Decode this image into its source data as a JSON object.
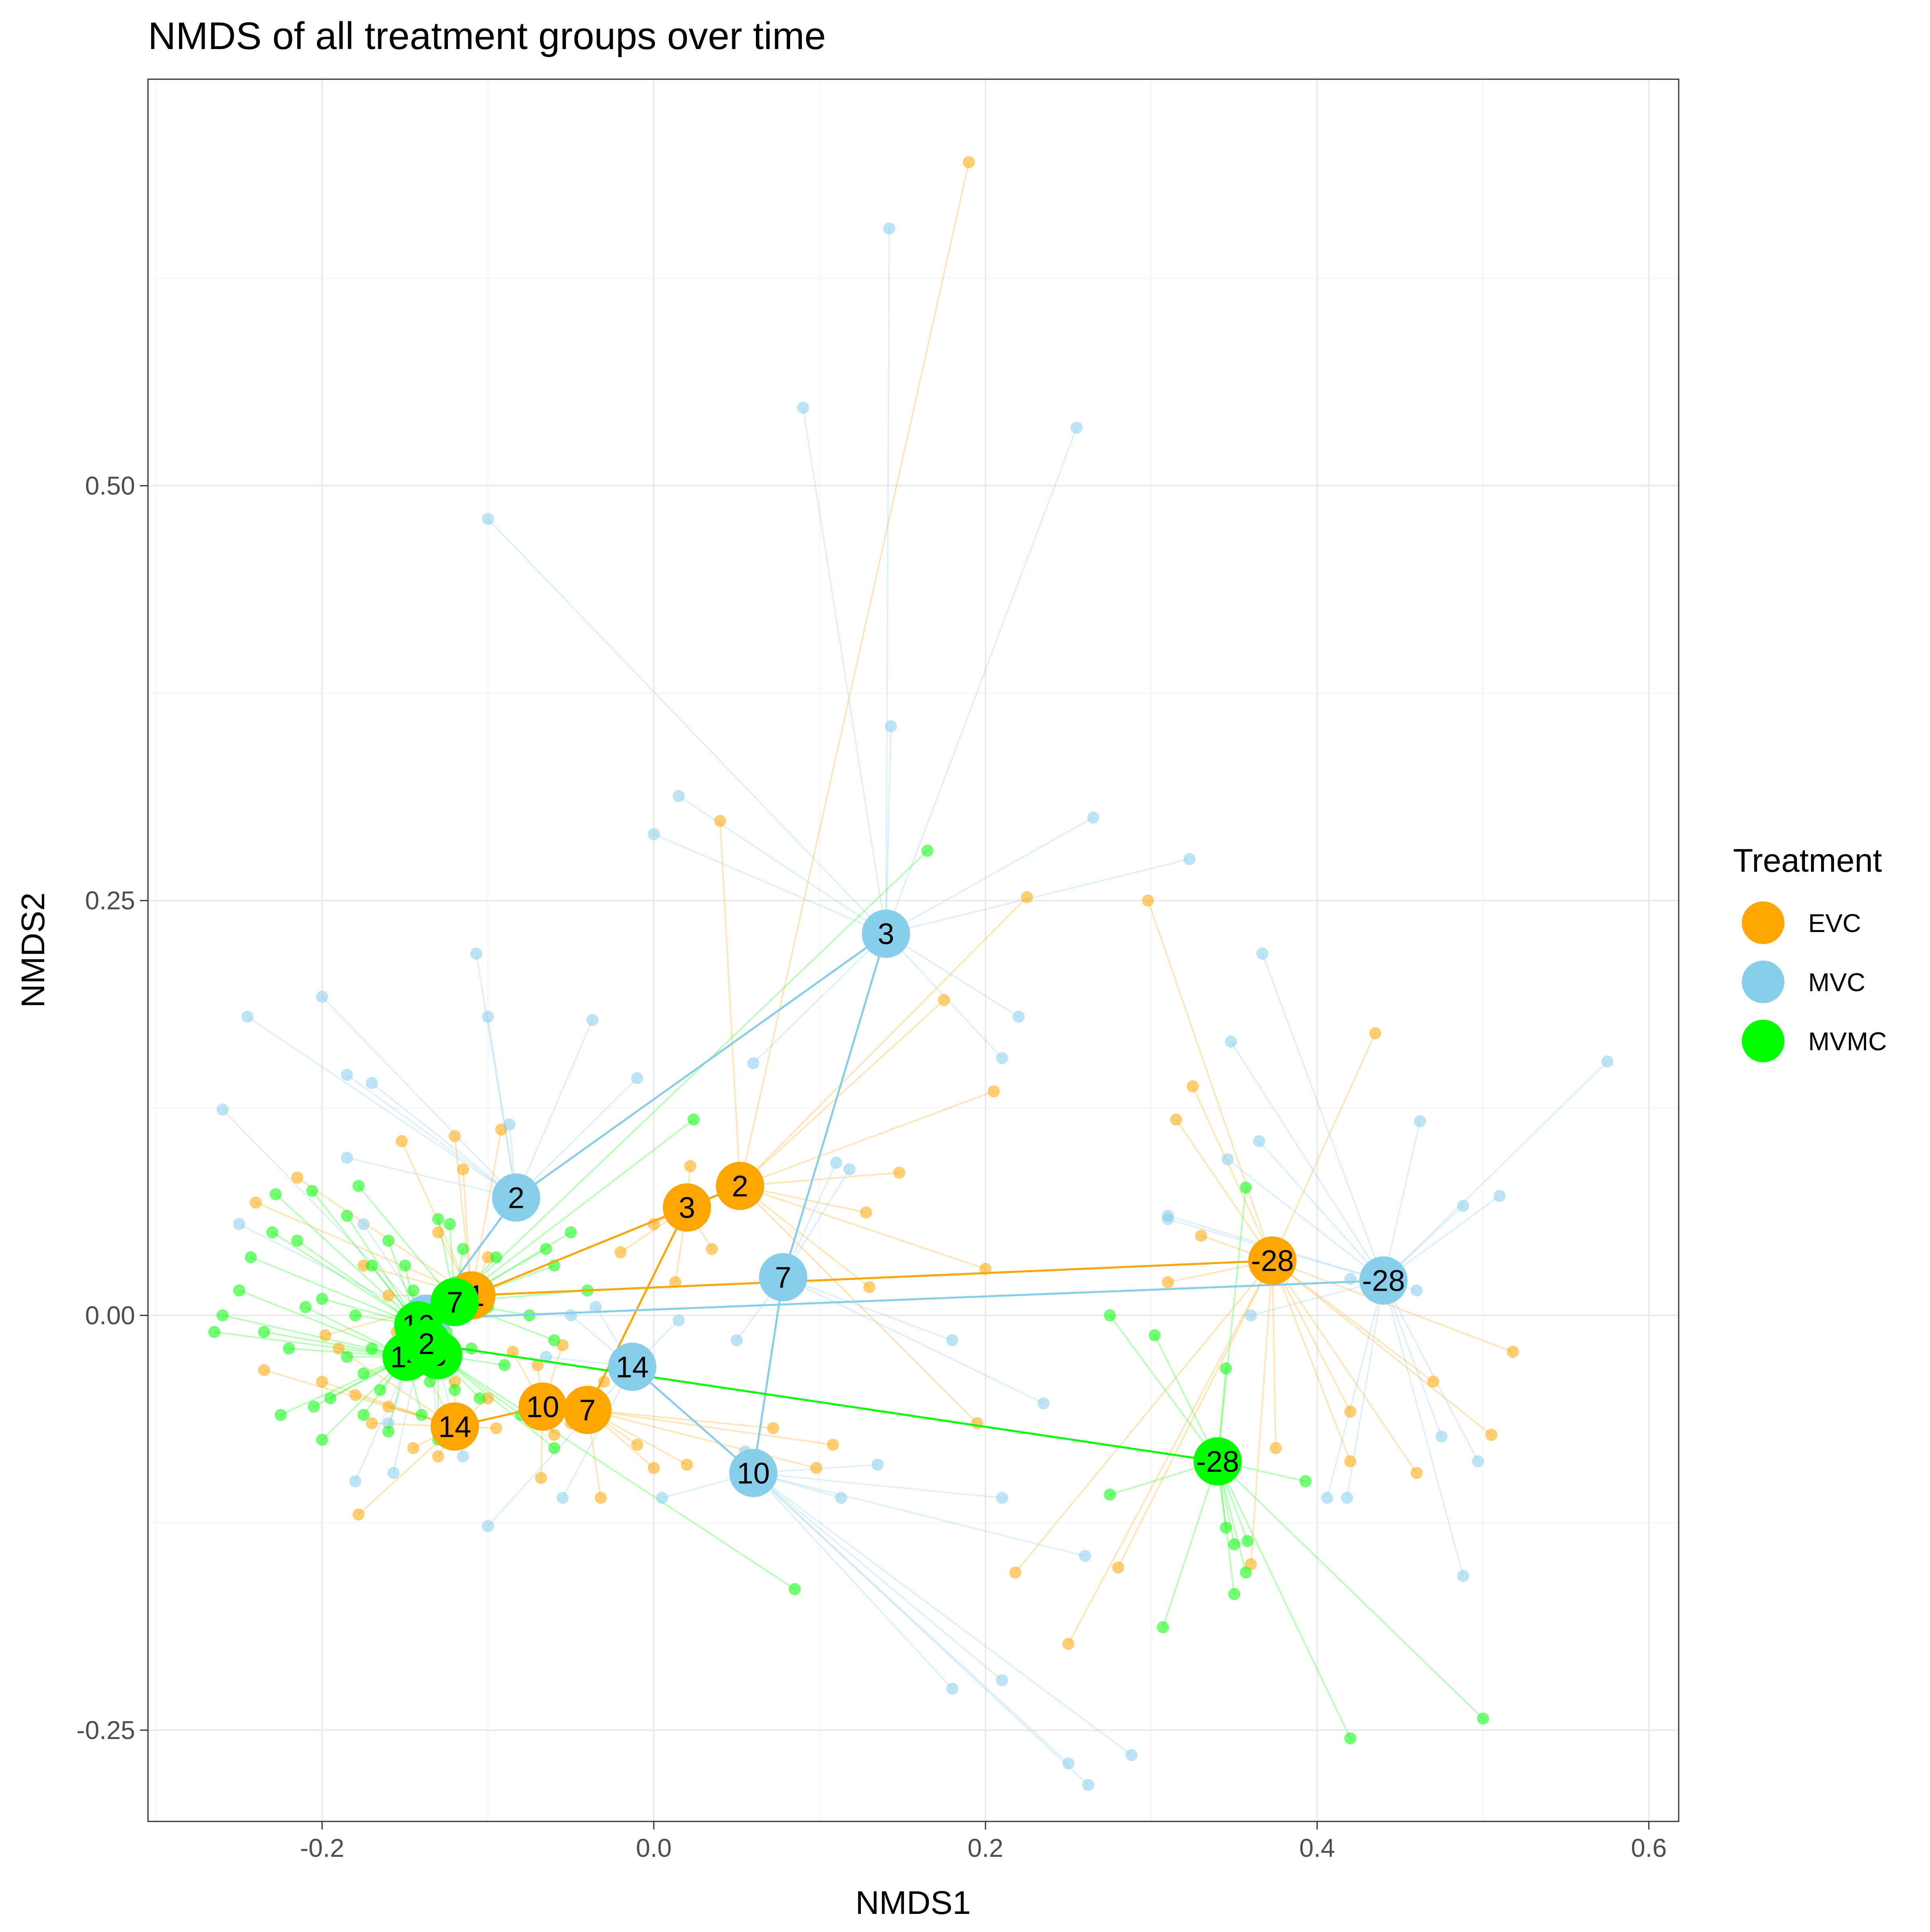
{
  "chart_data": {
    "type": "scatter",
    "title": "NMDS of all treatment groups over time",
    "xlabel": "NMDS1",
    "ylabel": "NMDS2",
    "xlim": [
      -0.305,
      0.618
    ],
    "ylim": [
      -0.305,
      0.745
    ],
    "x_ticks": [
      -0.2,
      0.0,
      0.2,
      0.4,
      0.6
    ],
    "x_tick_labels": [
      "-0.2",
      "0.0",
      "0.2",
      "0.4",
      "0.6"
    ],
    "y_ticks": [
      -0.25,
      0.0,
      0.25,
      0.5
    ],
    "y_tick_labels": [
      "-0.25",
      "0.00",
      "0.25",
      "0.50"
    ],
    "grid": true,
    "legend": {
      "title": "Treatment",
      "position": "right"
    },
    "series": [
      {
        "name": "EVC",
        "color": "#FFA500",
        "centroids": [
          {
            "label": "-28",
            "x": 0.373,
            "y": 0.033
          },
          {
            "label": "-1",
            "x": -0.11,
            "y": 0.012
          },
          {
            "label": "2",
            "x": 0.052,
            "y": 0.078
          },
          {
            "label": "3",
            "x": 0.02,
            "y": 0.065
          },
          {
            "label": "7",
            "x": -0.04,
            "y": -0.057
          },
          {
            "label": "10",
            "x": -0.067,
            "y": -0.055
          },
          {
            "label": "14",
            "x": -0.12,
            "y": -0.067
          }
        ],
        "samples": [
          [
            0.19,
            0.695,
            0
          ],
          [
            0.298,
            0.25,
            0
          ],
          [
            0.225,
            0.252,
            0
          ],
          [
            0.04,
            0.298,
            0
          ],
          [
            0.175,
            0.19,
            0
          ],
          [
            0.205,
            0.135,
            0
          ],
          [
            0.148,
            0.086,
            0
          ],
          [
            0.128,
            0.062,
            0
          ],
          [
            0.035,
            0.04,
            0
          ],
          [
            0.2,
            0.028,
            0
          ],
          [
            0.13,
            0.017,
            0
          ],
          [
            0.022,
            0.09,
            0
          ],
          [
            0.0,
            0.055,
            0
          ],
          [
            -0.02,
            0.038,
            0
          ],
          [
            0.013,
            0.02,
            0
          ],
          [
            0.435,
            0.17,
            0
          ],
          [
            0.325,
            0.138,
            0
          ],
          [
            0.315,
            0.118,
            0
          ],
          [
            0.33,
            0.048,
            0
          ],
          [
            0.31,
            0.02,
            0
          ],
          [
            0.375,
            -0.08,
            0
          ],
          [
            0.42,
            -0.088,
            0
          ],
          [
            0.46,
            -0.095,
            0
          ],
          [
            0.505,
            -0.072,
            0
          ],
          [
            0.518,
            -0.022,
            0
          ],
          [
            0.47,
            -0.04,
            0
          ],
          [
            0.42,
            -0.058,
            0
          ],
          [
            0.36,
            -0.15,
            0
          ],
          [
            -0.152,
            0.105,
            0
          ],
          [
            -0.12,
            0.108,
            0
          ],
          [
            -0.092,
            0.112,
            0
          ],
          [
            -0.115,
            0.088,
            0
          ],
          [
            -0.215,
            0.083,
            0
          ],
          [
            -0.24,
            0.068,
            0
          ],
          [
            -0.175,
            0.03,
            0
          ],
          [
            -0.16,
            0.012,
            0
          ],
          [
            -0.198,
            -0.012,
            0
          ],
          [
            -0.235,
            -0.033,
            0
          ],
          [
            -0.2,
            -0.04,
            0
          ],
          [
            -0.18,
            -0.048,
            0
          ],
          [
            -0.178,
            -0.12,
            0
          ],
          [
            -0.13,
            -0.085,
            0
          ],
          [
            -0.095,
            -0.068,
            0
          ],
          [
            -0.072,
            -0.062,
            0
          ],
          [
            -0.06,
            -0.072,
            0
          ],
          [
            -0.068,
            -0.098,
            0
          ],
          [
            -0.032,
            -0.11,
            0
          ],
          [
            -0.01,
            -0.078,
            0
          ],
          [
            0.0,
            -0.092,
            0
          ],
          [
            0.02,
            -0.09,
            0
          ],
          [
            0.072,
            -0.068,
            0
          ],
          [
            0.108,
            -0.078,
            0
          ],
          [
            0.098,
            -0.092,
            0
          ],
          [
            0.195,
            -0.065,
            0
          ],
          [
            0.218,
            -0.155,
            0
          ],
          [
            0.28,
            -0.152,
            0
          ],
          [
            0.25,
            -0.198,
            0
          ],
          [
            -0.145,
            -0.08,
            0
          ],
          [
            -0.13,
            0.05,
            0
          ],
          [
            -0.1,
            0.035,
            0
          ],
          [
            -0.085,
            -0.022,
            0
          ],
          [
            -0.055,
            -0.018,
            0
          ],
          [
            -0.14,
            -0.03,
            0
          ],
          [
            -0.16,
            -0.055,
            0
          ],
          [
            -0.12,
            -0.04,
            0
          ],
          [
            -0.1,
            -0.05,
            0
          ],
          [
            -0.07,
            -0.03,
            0
          ],
          [
            -0.03,
            -0.04,
            0
          ],
          [
            -0.05,
            -0.065,
            0
          ],
          [
            -0.17,
            -0.065,
            0
          ],
          [
            -0.19,
            -0.02,
            0
          ],
          [
            -0.155,
            -0.01,
            0
          ]
        ]
      },
      {
        "name": "MVC",
        "color": "#87CEEB",
        "centroids": [
          {
            "label": "-28",
            "x": 0.44,
            "y": 0.021
          },
          {
            "label": "2",
            "x": -0.083,
            "y": 0.071
          },
          {
            "label": "3",
            "x": 0.14,
            "y": 0.23
          },
          {
            "label": "7",
            "x": 0.078,
            "y": 0.023
          },
          {
            "label": "10",
            "x": 0.06,
            "y": -0.095
          },
          {
            "label": "14",
            "x": -0.013,
            "y": -0.031
          },
          {
            "label": "-1",
            "x": -0.137,
            "y": -0.002
          }
        ],
        "samples": [
          [
            0.142,
            0.655,
            1
          ],
          [
            0.09,
            0.547,
            1
          ],
          [
            0.255,
            0.535,
            1
          ],
          [
            -0.1,
            0.48,
            1
          ],
          [
            0.143,
            0.355,
            1
          ],
          [
            0.015,
            0.313,
            1
          ],
          [
            0.0,
            0.29,
            1
          ],
          [
            0.265,
            0.3,
            1
          ],
          [
            0.323,
            0.275,
            1
          ],
          [
            0.367,
            0.218,
            1
          ],
          [
            0.348,
            0.165,
            1
          ],
          [
            0.365,
            0.105,
            1
          ],
          [
            0.346,
            0.094,
            1
          ],
          [
            0.31,
            0.058,
            1
          ],
          [
            0.575,
            0.153,
            1
          ],
          [
            0.462,
            0.117,
            1
          ],
          [
            0.51,
            0.072,
            1
          ],
          [
            0.488,
            0.066,
            1
          ],
          [
            0.46,
            0.015,
            1
          ],
          [
            0.42,
            0.022,
            1
          ],
          [
            0.36,
            0.0,
            1
          ],
          [
            0.475,
            -0.073,
            1
          ],
          [
            0.497,
            -0.088,
            1
          ],
          [
            0.488,
            -0.157,
            1
          ],
          [
            0.406,
            -0.11,
            1
          ],
          [
            0.418,
            -0.11,
            1
          ],
          [
            0.22,
            0.18,
            1
          ],
          [
            0.21,
            0.155,
            1
          ],
          [
            0.06,
            0.152,
            1
          ],
          [
            0.11,
            0.092,
            1
          ],
          [
            0.118,
            0.088,
            1
          ],
          [
            -0.1,
            0.18,
            1
          ],
          [
            -0.037,
            0.178,
            1
          ],
          [
            -0.107,
            0.218,
            1
          ],
          [
            -0.245,
            0.18,
            1
          ],
          [
            -0.2,
            0.192,
            1
          ],
          [
            -0.26,
            0.124,
            1
          ],
          [
            -0.185,
            0.145,
            1
          ],
          [
            -0.17,
            0.14,
            1
          ],
          [
            -0.087,
            0.115,
            1
          ],
          [
            -0.01,
            0.143,
            1
          ],
          [
            -0.185,
            0.095,
            1
          ],
          [
            -0.25,
            0.055,
            1
          ],
          [
            -0.175,
            0.055,
            1
          ],
          [
            0.31,
            0.06,
            1
          ],
          [
            0.26,
            -0.145,
            1
          ],
          [
            0.235,
            -0.053,
            1
          ],
          [
            0.18,
            -0.225,
            1
          ],
          [
            0.21,
            -0.22,
            1
          ],
          [
            0.25,
            -0.27,
            1
          ],
          [
            0.262,
            -0.283,
            1
          ],
          [
            0.288,
            -0.265,
            1
          ],
          [
            0.21,
            -0.11,
            1
          ],
          [
            0.113,
            -0.11,
            1
          ],
          [
            0.135,
            -0.09,
            1
          ],
          [
            0.18,
            -0.015,
            1
          ],
          [
            0.05,
            -0.015,
            1
          ],
          [
            0.015,
            -0.003,
            1
          ],
          [
            -0.035,
            0.005,
            1
          ],
          [
            0.005,
            -0.11,
            1
          ],
          [
            -0.055,
            -0.11,
            1
          ],
          [
            -0.1,
            -0.127,
            1
          ],
          [
            -0.115,
            -0.085,
            1
          ],
          [
            -0.16,
            -0.065,
            1
          ],
          [
            -0.18,
            -0.1,
            1
          ],
          [
            -0.157,
            -0.095,
            1
          ],
          [
            -0.13,
            -0.07,
            1
          ],
          [
            -0.065,
            -0.025,
            1
          ],
          [
            -0.05,
            0.0,
            1
          ],
          [
            0.055,
            -0.082,
            1
          ]
        ]
      },
      {
        "name": "MVMC",
        "color": "#00FF00",
        "centroids": [
          {
            "label": "-28",
            "x": 0.34,
            "y": -0.088
          },
          {
            "label": "7",
            "x": -0.12,
            "y": 0.008
          },
          {
            "label": "10",
            "x": -0.142,
            "y": -0.006
          },
          {
            "label": "14",
            "x": -0.149,
            "y": -0.025
          },
          {
            "label": "3",
            "x": -0.13,
            "y": -0.024
          },
          {
            "label": "2",
            "x": -0.137,
            "y": -0.017
          }
        ],
        "samples": [
          [
            0.165,
            0.28,
            2
          ],
          [
            0.357,
            0.077,
            2
          ],
          [
            0.275,
            0.0,
            2
          ],
          [
            0.302,
            -0.012,
            2
          ],
          [
            0.345,
            -0.032,
            2
          ],
          [
            0.393,
            -0.1,
            2
          ],
          [
            0.275,
            -0.108,
            2
          ],
          [
            0.345,
            -0.128,
            2
          ],
          [
            0.35,
            -0.138,
            2
          ],
          [
            0.358,
            -0.136,
            2
          ],
          [
            0.357,
            -0.155,
            2
          ],
          [
            0.35,
            -0.168,
            2
          ],
          [
            0.307,
            -0.188,
            2
          ],
          [
            0.42,
            -0.255,
            2
          ],
          [
            0.5,
            -0.243,
            2
          ],
          [
            0.085,
            -0.165,
            2
          ],
          [
            0.024,
            0.118,
            2
          ],
          [
            -0.26,
            0.0,
            2
          ],
          [
            -0.265,
            -0.01,
            2
          ],
          [
            -0.243,
            0.035,
            2
          ],
          [
            -0.228,
            0.073,
            2
          ],
          [
            -0.206,
            0.075,
            2
          ],
          [
            -0.2,
            -0.075,
            2
          ],
          [
            -0.13,
            0.058,
            2
          ],
          [
            -0.123,
            0.055,
            2
          ],
          [
            -0.178,
            0.078,
            2
          ],
          [
            -0.17,
            0.03,
            2
          ],
          [
            -0.18,
            0.0,
            2
          ],
          [
            -0.2,
            0.01,
            2
          ],
          [
            -0.22,
            -0.02,
            2
          ],
          [
            -0.195,
            -0.05,
            2
          ],
          [
            -0.175,
            -0.035,
            2
          ],
          [
            -0.16,
            -0.07,
            2
          ],
          [
            -0.14,
            -0.06,
            2
          ],
          [
            -0.105,
            -0.05,
            2
          ],
          [
            -0.09,
            -0.03,
            2
          ],
          [
            -0.06,
            -0.015,
            2
          ],
          [
            -0.04,
            0.015,
            2
          ],
          [
            -0.05,
            0.05,
            2
          ],
          [
            -0.06,
            0.03,
            2
          ],
          [
            -0.075,
            0.0,
            2
          ],
          [
            -0.12,
            0.02,
            2
          ],
          [
            -0.15,
            0.03,
            2
          ],
          [
            -0.16,
            0.045,
            2
          ],
          [
            -0.145,
            0.005,
            2
          ],
          [
            -0.155,
            -0.02,
            2
          ],
          [
            -0.12,
            -0.045,
            2
          ],
          [
            -0.11,
            -0.02,
            2
          ],
          [
            -0.135,
            -0.04,
            2
          ],
          [
            -0.165,
            -0.045,
            2
          ],
          [
            -0.185,
            -0.025,
            2
          ],
          [
            -0.21,
            0.005,
            2
          ],
          [
            -0.215,
            0.045,
            2
          ],
          [
            -0.23,
            0.05,
            2
          ],
          [
            -0.25,
            0.015,
            2
          ],
          [
            -0.235,
            -0.01,
            2
          ],
          [
            -0.185,
            0.06,
            2
          ],
          [
            -0.17,
            -0.02,
            2
          ],
          [
            -0.125,
            -0.01,
            2
          ],
          [
            -0.1,
            0.005,
            2
          ],
          [
            -0.08,
            -0.06,
            2
          ],
          [
            -0.06,
            -0.08,
            2
          ],
          [
            -0.13,
            -0.075,
            2
          ],
          [
            -0.175,
            -0.06,
            2
          ],
          [
            -0.225,
            -0.06,
            2
          ],
          [
            -0.205,
            -0.055,
            2
          ],
          [
            -0.145,
            0.015,
            2
          ],
          [
            -0.115,
            0.04,
            2
          ],
          [
            -0.095,
            0.035,
            2
          ],
          [
            -0.065,
            0.04,
            2
          ]
        ]
      }
    ]
  }
}
